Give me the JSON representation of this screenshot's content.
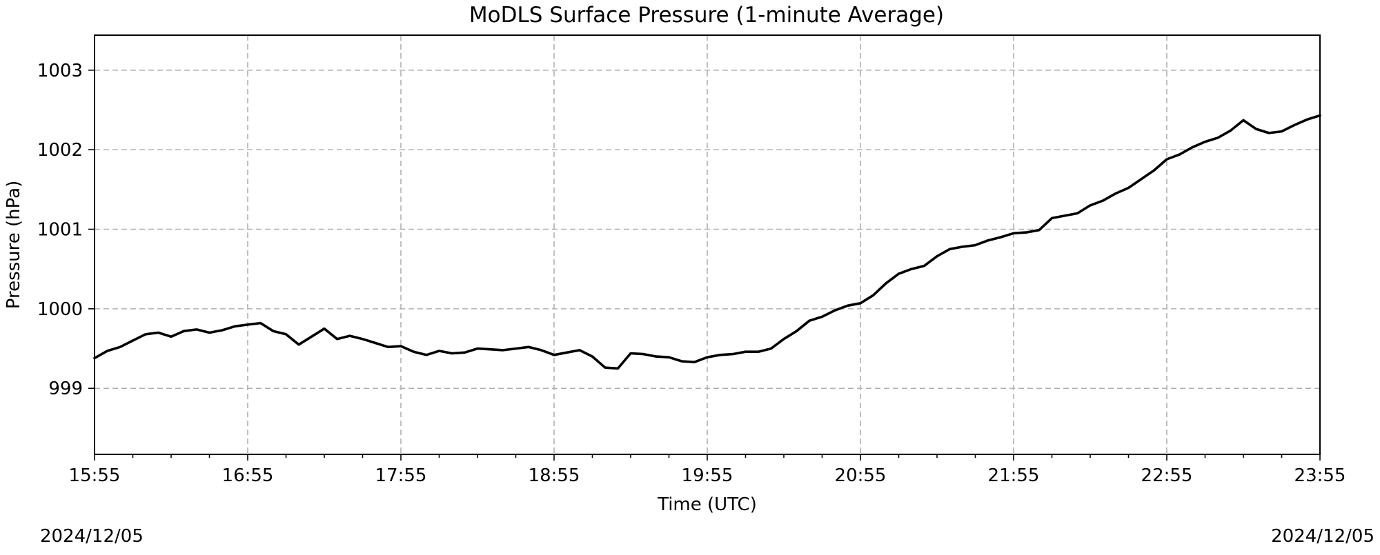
{
  "chart_data": {
    "type": "line",
    "title": "MoDLS Surface Pressure (1-minute Average)",
    "xlabel": "Time (UTC)",
    "ylabel": "Pressure (hPa)",
    "x_unit": "time of day (UTC), HH:MM",
    "date_start": "2024/12/05",
    "date_end": "2024/12/05",
    "xlim": [
      "15:55",
      "23:55"
    ],
    "ylim": [
      998.17,
      1003.44
    ],
    "x_ticks": [
      "15:55",
      "16:55",
      "17:55",
      "18:55",
      "19:55",
      "20:55",
      "21:55",
      "22:55",
      "23:55"
    ],
    "x_minor_tick_interval_minutes": 15,
    "y_ticks": [
      999,
      1000,
      1001,
      1002,
      1003
    ],
    "y_tick_labels": [
      "999",
      "1000",
      "1001",
      "1002",
      "1003"
    ],
    "grid": true,
    "legend": "none",
    "series": [
      {
        "color": "#000000",
        "x": [
          "15:55",
          "16:00",
          "16:05",
          "16:10",
          "16:15",
          "16:20",
          "16:25",
          "16:30",
          "16:35",
          "16:40",
          "16:45",
          "16:50",
          "16:55",
          "17:00",
          "17:05",
          "17:10",
          "17:15",
          "17:20",
          "17:25",
          "17:30",
          "17:35",
          "17:40",
          "17:45",
          "17:50",
          "17:55",
          "18:00",
          "18:05",
          "18:10",
          "18:15",
          "18:20",
          "18:25",
          "18:30",
          "18:35",
          "18:40",
          "18:45",
          "18:50",
          "18:55",
          "19:00",
          "19:05",
          "19:10",
          "19:15",
          "19:20",
          "19:25",
          "19:30",
          "19:35",
          "19:40",
          "19:45",
          "19:50",
          "19:55",
          "20:00",
          "20:05",
          "20:10",
          "20:15",
          "20:20",
          "20:25",
          "20:30",
          "20:35",
          "20:40",
          "20:45",
          "20:50",
          "20:55",
          "21:00",
          "21:05",
          "21:10",
          "21:15",
          "21:20",
          "21:25",
          "21:30",
          "21:35",
          "21:40",
          "21:45",
          "21:50",
          "21:55",
          "22:00",
          "22:05",
          "22:10",
          "22:15",
          "22:20",
          "22:25",
          "22:30",
          "22:35",
          "22:40",
          "22:45",
          "22:50",
          "22:55",
          "23:00",
          "23:05",
          "23:10",
          "23:15",
          "23:20",
          "23:25",
          "23:30",
          "23:35",
          "23:40",
          "23:45",
          "23:50",
          "23:55"
        ],
        "y": [
          999.38,
          999.47,
          999.52,
          999.6,
          999.68,
          999.7,
          999.65,
          999.72,
          999.74,
          999.7,
          999.73,
          999.78,
          999.8,
          999.82,
          999.72,
          999.68,
          999.55,
          999.65,
          999.75,
          999.62,
          999.66,
          999.62,
          999.57,
          999.52,
          999.53,
          999.46,
          999.42,
          999.47,
          999.44,
          999.45,
          999.5,
          999.49,
          999.48,
          999.5,
          999.52,
          999.48,
          999.42,
          999.45,
          999.48,
          999.4,
          999.26,
          999.25,
          999.44,
          999.43,
          999.4,
          999.39,
          999.34,
          999.33,
          999.39,
          999.42,
          999.43,
          999.46,
          999.46,
          999.5,
          999.62,
          999.72,
          999.85,
          999.9,
          999.98,
          1000.04,
          1000.07,
          1000.17,
          1000.32,
          1000.44,
          1000.5,
          1000.54,
          1000.66,
          1000.75,
          1000.78,
          1000.8,
          1000.86,
          1000.9,
          1000.95,
          1000.96,
          1000.99,
          1001.14,
          1001.17,
          1001.2,
          1001.3,
          1001.36,
          1001.45,
          1001.52,
          1001.63,
          1001.74,
          1001.88,
          1001.94,
          1002.03,
          1002.1,
          1002.15,
          1002.24,
          1002.37,
          1002.26,
          1002.21,
          1002.23,
          1002.31,
          1002.38,
          1002.43
        ]
      }
    ]
  }
}
